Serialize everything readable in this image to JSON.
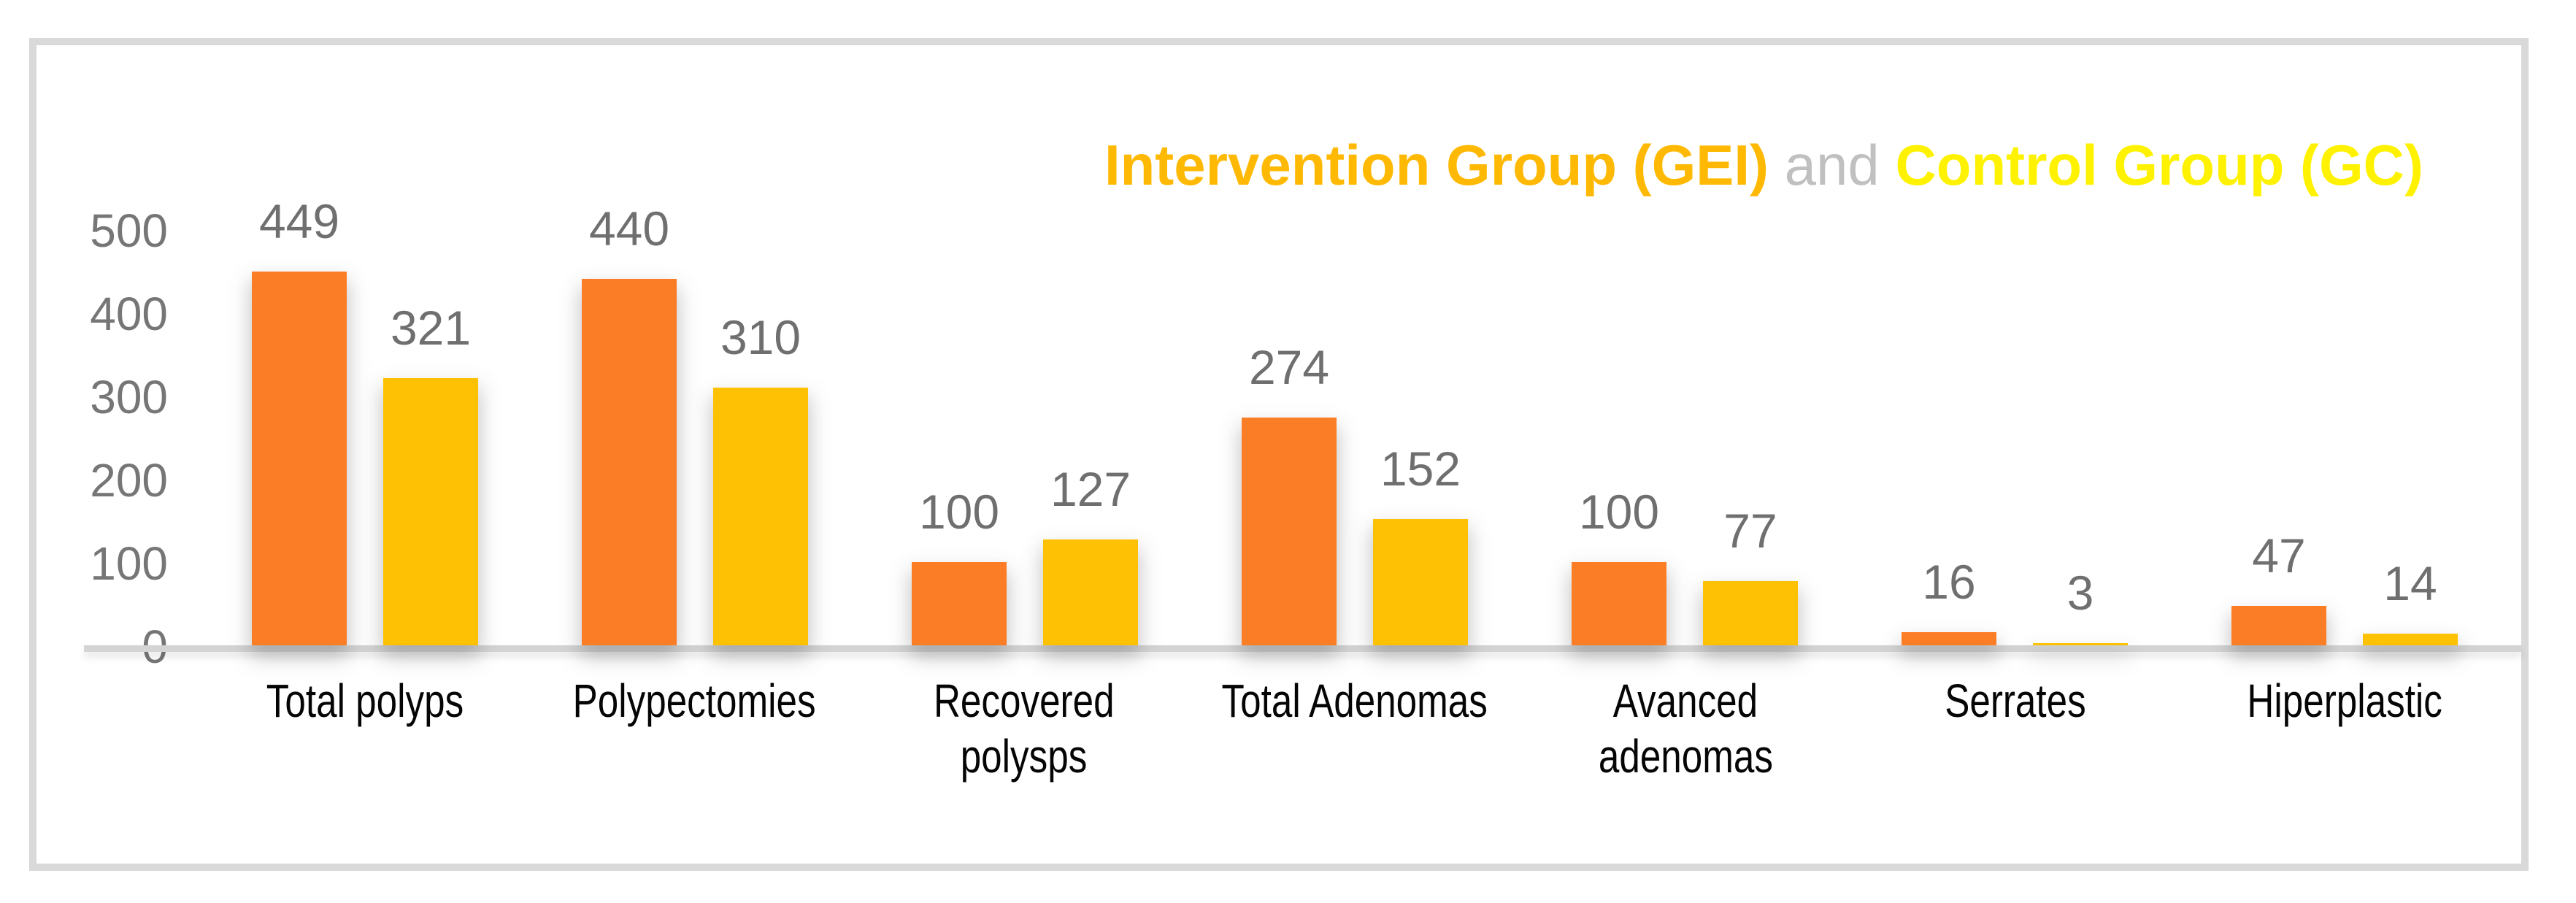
{
  "chart_data": {
    "type": "bar",
    "title": "Intervention Group (GEI) and Control Group (GC)",
    "legend_position": "top-right",
    "legend_parts": [
      {
        "text": "Intervention Group (GEI)",
        "color": "#FFB902",
        "bold": true
      },
      {
        "text": " and ",
        "color": "#C0C0C0",
        "bold": false
      },
      {
        "text": "Control Group (GC)",
        "color": "#FEF200",
        "bold": true
      }
    ],
    "categories": [
      "Total polyps",
      "Polypectomies",
      "Recovered polysps",
      "Total Adenomas",
      "Avanced adenomas",
      "Serrates",
      "Hiperplastic"
    ],
    "category_lines": [
      [
        "Total polyps"
      ],
      [
        "Polypectomies"
      ],
      [
        "Recovered",
        "polysps"
      ],
      [
        "Total Adenomas"
      ],
      [
        "Avanced",
        "adenomas"
      ],
      [
        "Serrates"
      ],
      [
        "Hiperplastic"
      ]
    ],
    "series": [
      {
        "name": "Intervention Group (GEI)",
        "color": "#FB7D26",
        "values": [
          449,
          440,
          100,
          274,
          100,
          16,
          47
        ]
      },
      {
        "name": "Control Group (GC)",
        "color": "#FFC103",
        "values": [
          321,
          310,
          127,
          152,
          77,
          3,
          14
        ]
      }
    ],
    "y_ticks": [
      500,
      400,
      300,
      200,
      100,
      0
    ],
    "ylim": [
      0,
      500
    ],
    "grid": false,
    "value_labels": true,
    "xlabel": "",
    "ylabel": ""
  },
  "style_colors": {
    "bar_gei": "#FB7D26",
    "bar_gc": "#FFC103",
    "frame_border": "#D9D9D9",
    "axis_line": "#D4D4D4",
    "tick_text": "#767676",
    "value_text": "#6F6F6F",
    "category_text": "#050505"
  }
}
